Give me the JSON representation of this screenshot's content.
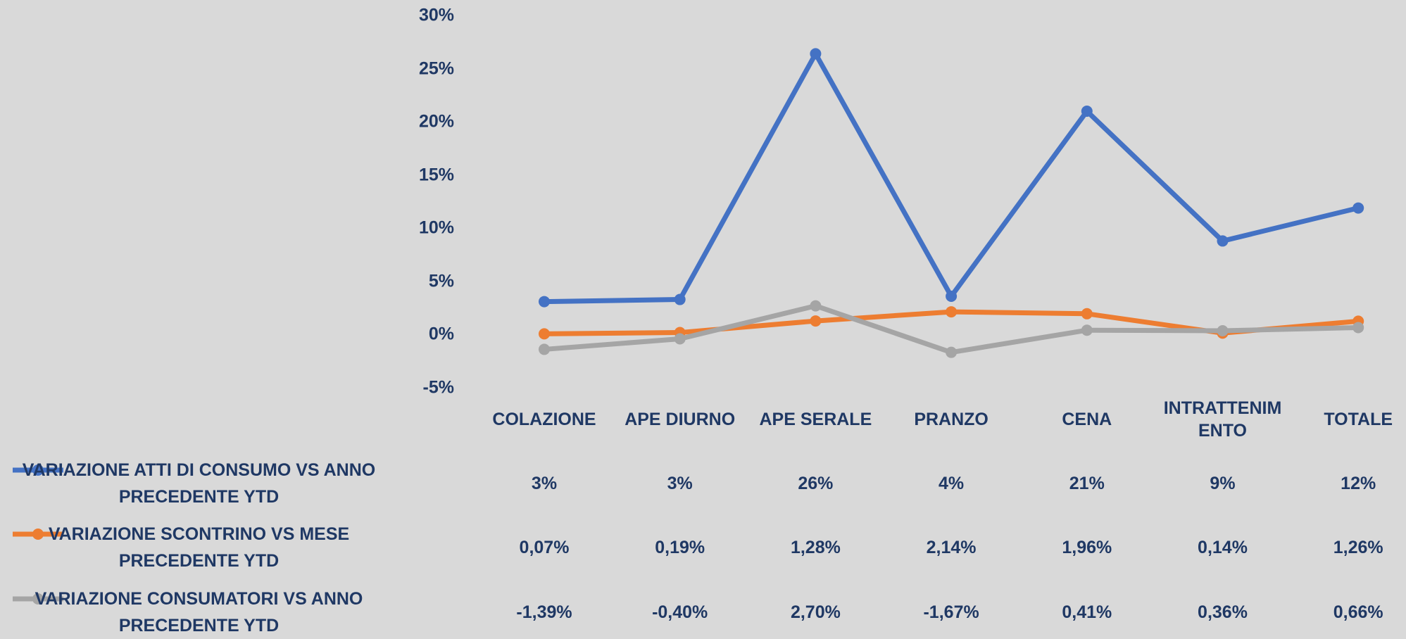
{
  "chart_data": {
    "type": "line",
    "categories": [
      "COLAZIONE",
      "APE DIURNO",
      "APE SERALE",
      "PRANZO",
      "CENA",
      "INTRATTENIMENTO",
      "TOTALE"
    ],
    "series": [
      {
        "name": "VARIAZIONE ATTI DI CONSUMO VS ANNO PRECEDENTE YTD",
        "color": "#4472c4",
        "values": [
          3.1,
          3.3,
          26.4,
          3.6,
          21.0,
          8.8,
          11.9
        ],
        "value_labels": [
          "3%",
          "3%",
          "26%",
          "4%",
          "21%",
          "9%",
          "12%"
        ]
      },
      {
        "name": "VARIAZIONE SCONTRINO VS MESE PRECEDENTE YTD",
        "color": "#ed7d31",
        "values": [
          0.07,
          0.19,
          1.28,
          2.14,
          1.96,
          0.14,
          1.26
        ],
        "value_labels": [
          "0,07%",
          "0,19%",
          "1,28%",
          "2,14%",
          "1,96%",
          "0,14%",
          "1,26%"
        ]
      },
      {
        "name": "VARIAZIONE CONSUMATORI VS ANNO PRECEDENTE YTD",
        "color": "#a5a5a5",
        "values": [
          -1.39,
          -0.4,
          2.7,
          -1.67,
          0.41,
          0.36,
          0.66
        ],
        "value_labels": [
          "-1,39%",
          "-0,40%",
          "2,70%",
          "-1,67%",
          "0,41%",
          "0,36%",
          "0,66%"
        ]
      }
    ],
    "ylim": [
      -5,
      30
    ],
    "yticks": [
      {
        "value": -5,
        "label": "-5%"
      },
      {
        "value": 0,
        "label": "0%"
      },
      {
        "value": 5,
        "label": "5%"
      },
      {
        "value": 10,
        "label": "10%"
      },
      {
        "value": 15,
        "label": "15%"
      },
      {
        "value": 20,
        "label": "20%"
      },
      {
        "value": 25,
        "label": "25%"
      },
      {
        "value": 30,
        "label": "30%"
      }
    ],
    "grid": false
  }
}
